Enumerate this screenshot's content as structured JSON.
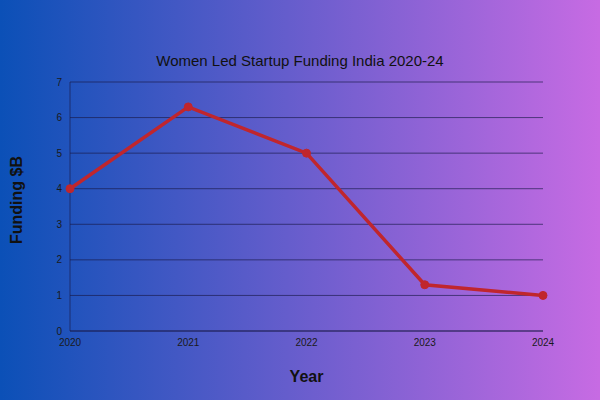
{
  "chart_data": {
    "type": "line",
    "title": "Women Led Startup Funding India 2020-24",
    "x_label": "Year",
    "y_label": "Funding $B",
    "categories": [
      "2020",
      "2021",
      "2022",
      "2023",
      "2024"
    ],
    "values": [
      4,
      6.3,
      5,
      1.3,
      1
    ],
    "color": "#c0262d",
    "ylim": [
      0,
      7
    ],
    "yticks": [
      0,
      1,
      2,
      3,
      4,
      5,
      6,
      7
    ],
    "grid": true,
    "marker": "circle"
  }
}
